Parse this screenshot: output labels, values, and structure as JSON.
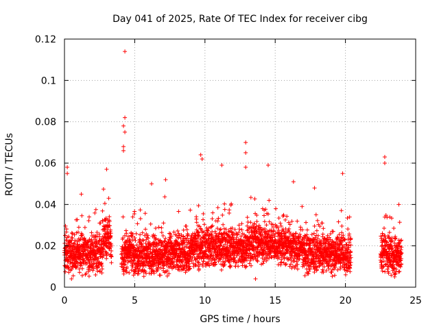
{
  "chart_data": {
    "type": "scatter",
    "title": "Day 041 of 2025, Rate Of TEC Index for receiver cibg",
    "xlabel": "GPS time / hours",
    "ylabel": "ROTI / TECUs",
    "xlim": [
      0,
      25
    ],
    "ylim": [
      0,
      0.12
    ],
    "xticks": [
      "0",
      "5",
      "10",
      "15",
      "20",
      "25"
    ],
    "xtick_values": [
      0,
      5,
      10,
      15,
      20,
      25
    ],
    "yticks": [
      "0",
      "0.02",
      "0.04",
      "0.06",
      "0.08",
      "0.1",
      "0.12"
    ],
    "ytick_values": [
      0,
      0.02,
      0.04,
      0.06,
      0.08,
      0.1,
      0.12
    ],
    "grid": true,
    "marker": "+",
    "series": [
      {
        "name": "ROTI",
        "color": "#ff0000",
        "data_gaps_hours": [
          [
            20.4,
            22.5
          ]
        ],
        "typical_range": [
          0.005,
          0.035
        ],
        "notable_points": [
          {
            "x": 4.3,
            "y": 0.114
          },
          {
            "x": 4.3,
            "y": 0.082
          },
          {
            "x": 4.2,
            "y": 0.078
          },
          {
            "x": 4.3,
            "y": 0.075
          },
          {
            "x": 4.2,
            "y": 0.068
          },
          {
            "x": 4.2,
            "y": 0.066
          },
          {
            "x": 12.9,
            "y": 0.07
          },
          {
            "x": 12.9,
            "y": 0.065
          },
          {
            "x": 12.9,
            "y": 0.058
          },
          {
            "x": 9.7,
            "y": 0.064
          },
          {
            "x": 9.8,
            "y": 0.062
          },
          {
            "x": 22.8,
            "y": 0.063
          },
          {
            "x": 22.8,
            "y": 0.06
          },
          {
            "x": 0.2,
            "y": 0.058
          },
          {
            "x": 0.2,
            "y": 0.055
          },
          {
            "x": 3.0,
            "y": 0.057
          },
          {
            "x": 11.2,
            "y": 0.059
          },
          {
            "x": 14.5,
            "y": 0.059
          },
          {
            "x": 19.8,
            "y": 0.055
          },
          {
            "x": 1.2,
            "y": 0.045
          },
          {
            "x": 6.2,
            "y": 0.05
          },
          {
            "x": 7.2,
            "y": 0.052
          },
          {
            "x": 16.3,
            "y": 0.051
          },
          {
            "x": 17.8,
            "y": 0.048
          },
          {
            "x": 23.8,
            "y": 0.04
          },
          {
            "x": 0.5,
            "y": 0.004
          },
          {
            "x": 13.6,
            "y": 0.004
          },
          {
            "x": 23.5,
            "y": 0.005
          }
        ]
      }
    ]
  }
}
